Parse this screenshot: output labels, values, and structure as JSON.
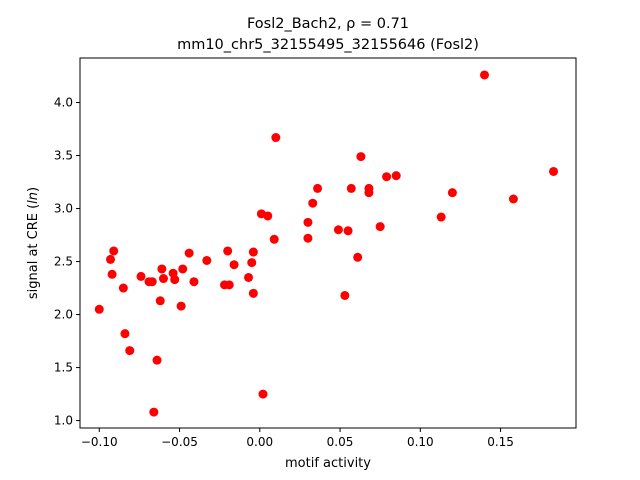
{
  "chart_data": {
    "type": "scatter",
    "title_line1": "Fosl2_Bach2, ρ = 0.71",
    "title_line2": "mm10_chr5_32155495_32155646 (Fosl2)",
    "xlabel": "motif activity",
    "ylabel": "signal at CRE (ln)",
    "xlim": [
      -0.112,
      0.197
    ],
    "ylim": [
      0.93,
      4.42
    ],
    "xticks": [
      -0.1,
      -0.05,
      0.0,
      0.05,
      0.1,
      0.15
    ],
    "xtick_labels": [
      "−0.10",
      "−0.05",
      "0.00",
      "0.05",
      "0.10",
      "0.15"
    ],
    "yticks": [
      1.0,
      1.5,
      2.0,
      2.5,
      3.0,
      3.5,
      4.0
    ],
    "ytick_labels": [
      "1.0",
      "1.5",
      "2.0",
      "2.5",
      "3.0",
      "3.5",
      "4.0"
    ],
    "grid": false,
    "marker_color": "#ff0000",
    "points": [
      {
        "x": -0.1,
        "y": 2.05
      },
      {
        "x": -0.093,
        "y": 2.52
      },
      {
        "x": -0.092,
        "y": 2.38
      },
      {
        "x": -0.091,
        "y": 2.6
      },
      {
        "x": -0.085,
        "y": 2.25
      },
      {
        "x": -0.084,
        "y": 1.82
      },
      {
        "x": -0.081,
        "y": 1.66
      },
      {
        "x": -0.074,
        "y": 2.36
      },
      {
        "x": -0.069,
        "y": 2.31
      },
      {
        "x": -0.067,
        "y": 2.31
      },
      {
        "x": -0.066,
        "y": 1.08
      },
      {
        "x": -0.064,
        "y": 1.57
      },
      {
        "x": -0.062,
        "y": 2.13
      },
      {
        "x": -0.061,
        "y": 2.43
      },
      {
        "x": -0.06,
        "y": 2.34
      },
      {
        "x": -0.054,
        "y": 2.39
      },
      {
        "x": -0.053,
        "y": 2.33
      },
      {
        "x": -0.049,
        "y": 2.08
      },
      {
        "x": -0.048,
        "y": 2.43
      },
      {
        "x": -0.044,
        "y": 2.58
      },
      {
        "x": -0.041,
        "y": 2.31
      },
      {
        "x": -0.033,
        "y": 2.51
      },
      {
        "x": -0.022,
        "y": 2.28
      },
      {
        "x": -0.02,
        "y": 2.6
      },
      {
        "x": -0.019,
        "y": 2.28
      },
      {
        "x": -0.016,
        "y": 2.47
      },
      {
        "x": -0.007,
        "y": 2.35
      },
      {
        "x": -0.005,
        "y": 2.49
      },
      {
        "x": -0.004,
        "y": 2.59
      },
      {
        "x": -0.004,
        "y": 2.2
      },
      {
        "x": 0.001,
        "y": 2.95
      },
      {
        "x": 0.002,
        "y": 1.25
      },
      {
        "x": 0.005,
        "y": 2.93
      },
      {
        "x": 0.009,
        "y": 2.71
      },
      {
        "x": 0.01,
        "y": 3.67
      },
      {
        "x": 0.03,
        "y": 2.87
      },
      {
        "x": 0.03,
        "y": 2.72
      },
      {
        "x": 0.033,
        "y": 3.05
      },
      {
        "x": 0.036,
        "y": 3.19
      },
      {
        "x": 0.049,
        "y": 2.8
      },
      {
        "x": 0.053,
        "y": 2.18
      },
      {
        "x": 0.055,
        "y": 2.79
      },
      {
        "x": 0.057,
        "y": 3.19
      },
      {
        "x": 0.061,
        "y": 2.54
      },
      {
        "x": 0.063,
        "y": 3.49
      },
      {
        "x": 0.068,
        "y": 3.19
      },
      {
        "x": 0.068,
        "y": 3.15
      },
      {
        "x": 0.075,
        "y": 2.83
      },
      {
        "x": 0.079,
        "y": 3.3
      },
      {
        "x": 0.085,
        "y": 3.31
      },
      {
        "x": 0.113,
        "y": 2.92
      },
      {
        "x": 0.12,
        "y": 3.15
      },
      {
        "x": 0.14,
        "y": 4.26
      },
      {
        "x": 0.158,
        "y": 3.09
      },
      {
        "x": 0.183,
        "y": 3.35
      }
    ]
  }
}
